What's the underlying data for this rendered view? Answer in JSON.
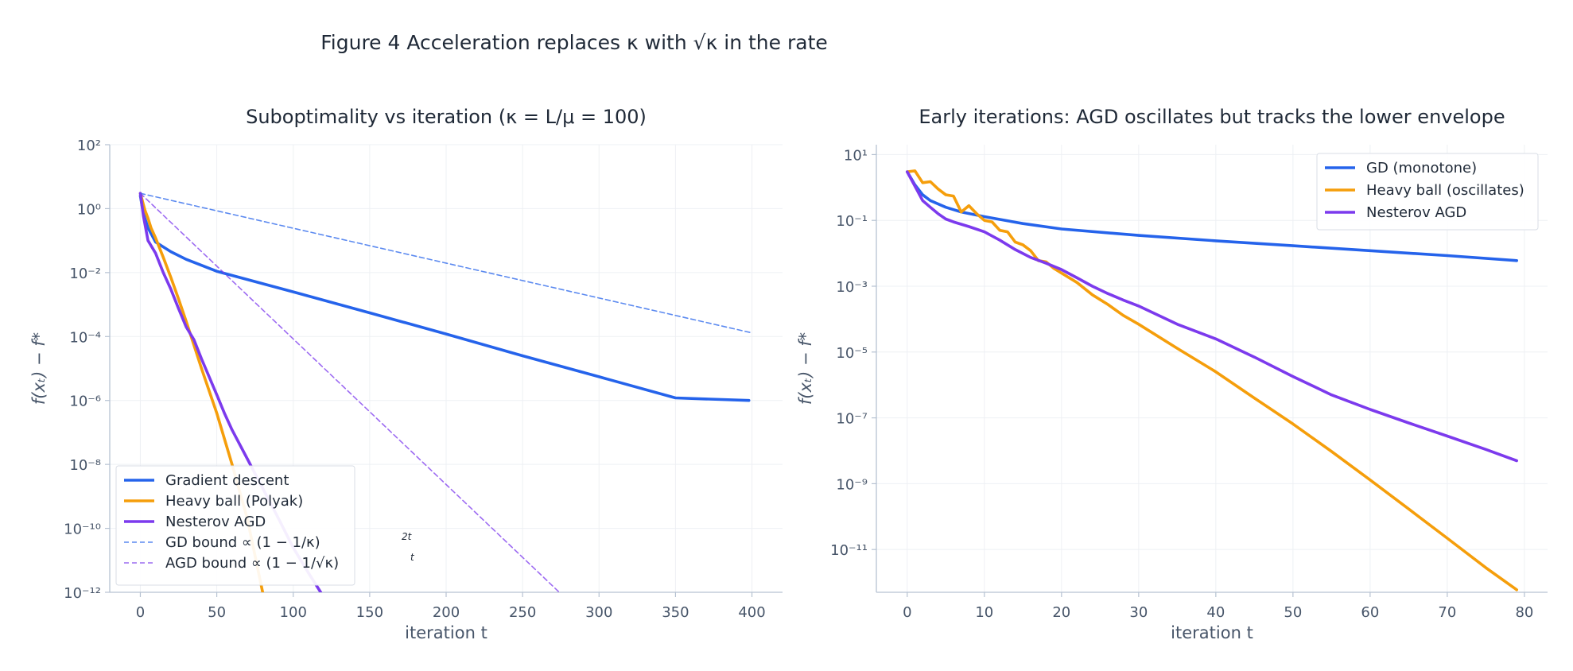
{
  "figure": {
    "title": "Figure 4  Acceleration replaces κ with √κ in the rate"
  },
  "colors": {
    "gd": "#2563eb",
    "heavy_ball": "#f59e0b",
    "nesterov": "#7c3aed",
    "text": "#1f2937",
    "tick": "#475569",
    "grid": "#eef0f4",
    "spine": "#b6c2d2"
  },
  "chart_data": [
    {
      "type": "line",
      "title": "Suboptimality vs iteration  (κ = L/μ = 100)",
      "xlabel": "iteration t",
      "ylabel": "f(xₜ) − f*",
      "yscale": "log",
      "xlim": [
        -20,
        420
      ],
      "ylim_log10": [
        -12,
        2
      ],
      "xticks": [
        0,
        50,
        100,
        150,
        200,
        250,
        300,
        350,
        400
      ],
      "ytick_labels": [
        "10²",
        "10⁰",
        "10⁻²",
        "10⁻⁴",
        "10⁻⁶",
        "10⁻⁸",
        "10⁻¹⁰",
        "10⁻¹²"
      ],
      "grid": true,
      "legend": "lower-left",
      "series": [
        {
          "name": "Gradient descent",
          "key": "gd",
          "style": "solid",
          "points": [
            [
              0,
              2.5
            ],
            [
              2,
              0.7
            ],
            [
              5,
              0.25
            ],
            [
              10,
              0.09
            ],
            [
              20,
              0.045
            ],
            [
              30,
              0.026
            ],
            [
              50,
              0.011
            ],
            [
              100,
              0.0025
            ],
            [
              150,
              0.00055
            ],
            [
              200,
              0.00012
            ],
            [
              250,
              2.5e-05
            ],
            [
              300,
              5.5e-06
            ],
            [
              350,
              1.2e-06
            ],
            [
              398,
              1e-06
            ]
          ]
        },
        {
          "name": "Heavy ball (Polyak)",
          "key": "heavy_ball",
          "style": "solid",
          "points": [
            [
              0,
              3
            ],
            [
              3,
              0.9
            ],
            [
              5,
              0.5
            ],
            [
              7,
              0.25
            ],
            [
              10,
              0.12
            ],
            [
              15,
              0.03
            ],
            [
              20,
              0.007
            ],
            [
              25,
              0.0015
            ],
            [
              30,
              0.0003
            ],
            [
              40,
              1e-05
            ],
            [
              50,
              4e-07
            ],
            [
              60,
              1e-08
            ],
            [
              70,
              2e-10
            ],
            [
              80,
              1e-12
            ]
          ]
        },
        {
          "name": "Nesterov AGD",
          "key": "nesterov",
          "style": "solid",
          "points": [
            [
              0,
              3
            ],
            [
              2,
              0.6
            ],
            [
              5,
              0.1
            ],
            [
              10,
              0.04
            ],
            [
              15,
              0.01
            ],
            [
              20,
              0.003
            ],
            [
              25,
              0.00075
            ],
            [
              30,
              0.0002
            ],
            [
              35,
              8e-05
            ],
            [
              40,
              2e-05
            ],
            [
              50,
              1.5e-06
            ],
            [
              55,
              4e-07
            ],
            [
              60,
              1.2e-07
            ],
            [
              70,
              1.5e-08
            ],
            [
              80,
              1.8e-09
            ],
            [
              90,
              2.2e-10
            ],
            [
              100,
              2.5e-11
            ],
            [
              110,
              4e-12
            ],
            [
              118,
              1e-12
            ]
          ]
        },
        {
          "name": "GD bound ∝ (1 − 1/κ)^{2t}",
          "key": "gd",
          "style": "dashed",
          "points": [
            [
              0,
              3
            ],
            [
              400,
              0.00013
            ]
          ]
        },
        {
          "name": "AGD bound ∝ (1 − 1/√κ)^{t}",
          "key": "nesterov",
          "style": "dashed",
          "points": [
            [
              0,
              3
            ],
            [
              274,
              1e-12
            ]
          ]
        }
      ],
      "legend_entries": [
        "Gradient descent",
        "Heavy ball (Polyak)",
        "Nesterov AGD",
        "GD bound ∝ (1 − 1/κ)",
        "AGD bound ∝ (1 − 1/√κ)"
      ],
      "legend_superscripts": [
        "",
        "",
        "",
        "2t",
        "t"
      ]
    },
    {
      "type": "line",
      "title": "Early iterations: AGD oscillates but tracks the lower envelope",
      "xlabel": "iteration t",
      "ylabel": "f(xₜ) − f*",
      "yscale": "log",
      "xlim": [
        -4,
        83
      ],
      "ylim_log10": [
        -12.3,
        1.3
      ],
      "xticks": [
        0,
        10,
        20,
        30,
        40,
        50,
        60,
        70,
        80
      ],
      "ytick_labels": [
        "10¹",
        "10⁻¹",
        "10⁻³",
        "10⁻⁵",
        "10⁻⁷",
        "10⁻⁹",
        "10⁻¹¹"
      ],
      "grid": true,
      "legend": "top-right",
      "series": [
        {
          "name": "GD (monotone)",
          "key": "gd",
          "style": "solid",
          "points": [
            [
              0,
              3
            ],
            [
              1,
              1.2
            ],
            [
              2,
              0.6
            ],
            [
              3,
              0.4
            ],
            [
              5,
              0.25
            ],
            [
              7,
              0.18
            ],
            [
              10,
              0.13
            ],
            [
              15,
              0.08
            ],
            [
              20,
              0.055
            ],
            [
              30,
              0.035
            ],
            [
              40,
              0.024
            ],
            [
              50,
              0.017
            ],
            [
              60,
              0.012
            ],
            [
              70,
              0.0085
            ],
            [
              79,
              0.006
            ]
          ]
        },
        {
          "name": "Heavy ball (oscillates)",
          "key": "heavy_ball",
          "style": "solid",
          "points": [
            [
              0,
              3
            ],
            [
              1,
              3.2
            ],
            [
              2,
              1.4
            ],
            [
              3,
              1.5
            ],
            [
              4,
              0.9
            ],
            [
              5,
              0.6
            ],
            [
              6,
              0.55
            ],
            [
              7,
              0.18
            ],
            [
              8,
              0.28
            ],
            [
              9,
              0.16
            ],
            [
              10,
              0.1
            ],
            [
              11,
              0.09
            ],
            [
              12,
              0.05
            ],
            [
              13,
              0.045
            ],
            [
              14,
              0.022
            ],
            [
              15,
              0.018
            ],
            [
              16,
              0.012
            ],
            [
              17,
              0.006
            ],
            [
              18,
              0.0055
            ],
            [
              19,
              0.0035
            ],
            [
              20,
              0.0025
            ],
            [
              22,
              0.0013
            ],
            [
              24,
              0.00055
            ],
            [
              26,
              0.00028
            ],
            [
              28,
              0.00013
            ],
            [
              30,
              7e-05
            ],
            [
              35,
              1.3e-05
            ],
            [
              40,
              2.5e-06
            ],
            [
              45,
              4e-07
            ],
            [
              50,
              6.5e-08
            ],
            [
              55,
              9.5e-09
            ],
            [
              60,
              1.3e-09
            ],
            [
              65,
              1.7e-10
            ],
            [
              70,
              2.2e-11
            ],
            [
              75,
              2.8e-12
            ],
            [
              79,
              6e-13
            ]
          ]
        },
        {
          "name": "Nesterov AGD",
          "key": "nesterov",
          "style": "solid",
          "points": [
            [
              0,
              3
            ],
            [
              1,
              1.1
            ],
            [
              2,
              0.4
            ],
            [
              3,
              0.25
            ],
            [
              4,
              0.16
            ],
            [
              5,
              0.11
            ],
            [
              6,
              0.09
            ],
            [
              8,
              0.065
            ],
            [
              10,
              0.045
            ],
            [
              12,
              0.025
            ],
            [
              14,
              0.013
            ],
            [
              16,
              0.0075
            ],
            [
              18,
              0.005
            ],
            [
              20,
              0.0032
            ],
            [
              22,
              0.0018
            ],
            [
              24,
              0.001
            ],
            [
              26,
              0.0006
            ],
            [
              28,
              0.00038
            ],
            [
              30,
              0.00025
            ],
            [
              35,
              7e-05
            ],
            [
              40,
              2.5e-05
            ],
            [
              45,
              7e-06
            ],
            [
              50,
              1.8e-06
            ],
            [
              55,
              5e-07
            ],
            [
              60,
              1.8e-07
            ],
            [
              65,
              7e-08
            ],
            [
              70,
              2.8e-08
            ],
            [
              75,
              1.1e-08
            ],
            [
              79,
              5e-09
            ]
          ]
        }
      ]
    }
  ]
}
